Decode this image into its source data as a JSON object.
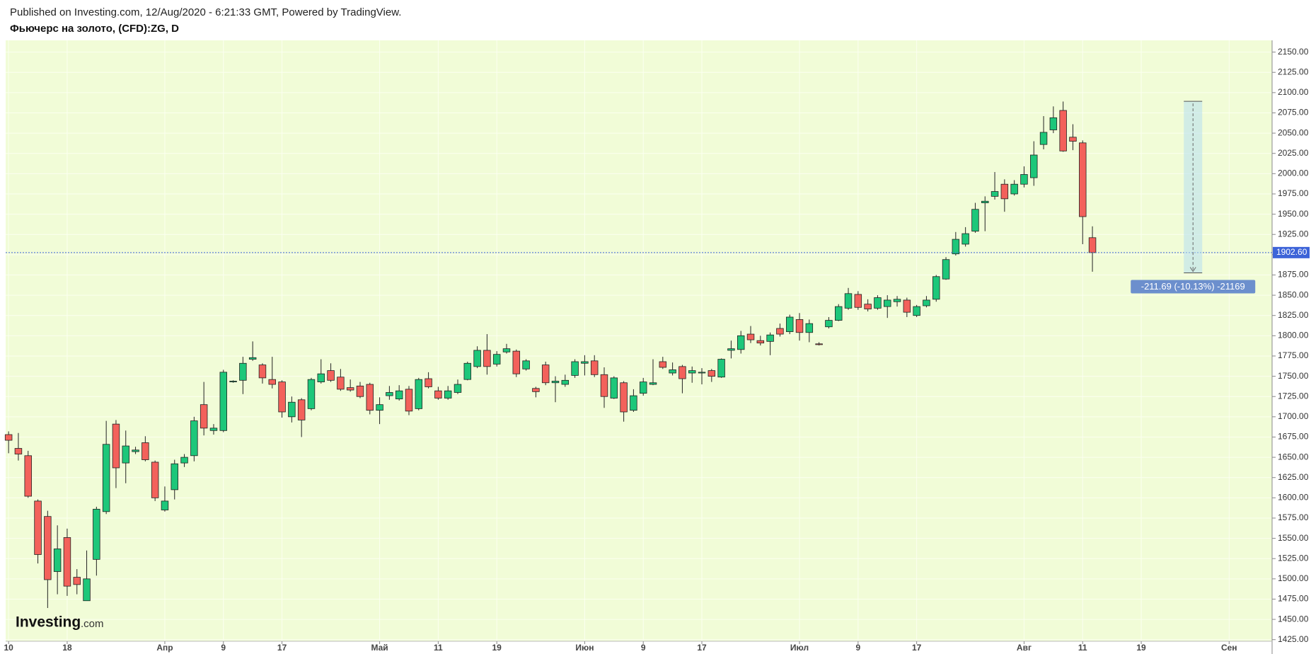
{
  "header": {
    "published": "Published on Investing.com, 12/Aug/2020 - 6:21:33 GMT, Powered by TradingView.",
    "title": "Фьючерс на золото, (CFD):ZG, D"
  },
  "logo": {
    "name": "Investing",
    "suffix": ".com"
  },
  "chart_data": {
    "type": "candlestick",
    "up_color": "#1dc77a",
    "down_color": "#f3615b",
    "wick_color": "#222222",
    "grid": true,
    "open": [
      1678,
      1661,
      1652,
      1596,
      1577,
      1509,
      1551,
      1502,
      1473,
      1524,
      1583,
      1691,
      1643,
      1657,
      1668,
      1644,
      1585,
      1610,
      1643,
      1652,
      1715,
      1683,
      1683,
      1743,
      1745,
      1771,
      1764,
      1746,
      1743,
      1700,
      1721,
      1710,
      1743,
      1757,
      1749,
      1736,
      1738,
      1740,
      1708,
      1726,
      1722,
      1734,
      1710,
      1747,
      1732,
      1723,
      1730,
      1746,
      1762,
      1782,
      1765,
      1780,
      1781,
      1759,
      1735,
      1764,
      1742,
      1740,
      1751,
      1766,
      1769,
      1752,
      1723,
      1742,
      1708,
      1729,
      1740,
      1768,
      1754,
      1762,
      1754,
      1754,
      1757,
      1749,
      1782,
      1783,
      1802,
      1794,
      1793,
      1809,
      1805,
      1820,
      1804,
      1790,
      1811,
      1819,
      1834,
      1851,
      1839,
      1834,
      1836,
      1842,
      1844,
      1825,
      1837,
      1845,
      1870,
      1901,
      1913,
      1929,
      1964,
      1972,
      1987,
      1975,
      1987,
      1995,
      2036,
      2054,
      2078,
      2045,
      2038,
      1921
    ],
    "high": [
      1682,
      1680,
      1658,
      1598,
      1584,
      1566,
      1562,
      1512,
      1535,
      1589,
      1695,
      1696,
      1683,
      1663,
      1676,
      1646,
      1614,
      1647,
      1654,
      1700,
      1743,
      1691,
      1758,
      1745,
      1774,
      1793,
      1766,
      1774,
      1745,
      1725,
      1723,
      1748,
      1771,
      1766,
      1759,
      1746,
      1743,
      1742,
      1724,
      1738,
      1739,
      1738,
      1748,
      1755,
      1737,
      1738,
      1746,
      1768,
      1787,
      1802,
      1781,
      1790,
      1783,
      1771,
      1737,
      1768,
      1750,
      1752,
      1771,
      1776,
      1776,
      1761,
      1750,
      1744,
      1734,
      1748,
      1771,
      1774,
      1767,
      1764,
      1762,
      1760,
      1759,
      1772,
      1794,
      1806,
      1812,
      1800,
      1804,
      1815,
      1826,
      1828,
      1820,
      1792,
      1823,
      1839,
      1859,
      1855,
      1845,
      1850,
      1850,
      1849,
      1847,
      1838,
      1849,
      1875,
      1897,
      1928,
      1934,
      1964,
      1972,
      2002,
      1993,
      1992,
      2009,
      2040,
      2071,
      2083,
      2089,
      2061,
      2041,
      1935
    ],
    "low": [
      1655,
      1646,
      1600,
      1519,
      1464,
      1481,
      1479,
      1481,
      1473,
      1504,
      1580,
      1612,
      1618,
      1654,
      1645,
      1596,
      1583,
      1598,
      1638,
      1645,
      1677,
      1678,
      1681,
      1742,
      1728,
      1769,
      1741,
      1735,
      1699,
      1693,
      1675,
      1708,
      1741,
      1743,
      1732,
      1731,
      1723,
      1703,
      1691,
      1721,
      1720,
      1702,
      1708,
      1735,
      1721,
      1721,
      1728,
      1745,
      1760,
      1752,
      1762,
      1778,
      1749,
      1757,
      1724,
      1739,
      1718,
      1737,
      1748,
      1751,
      1749,
      1711,
      1722,
      1694,
      1706,
      1726,
      1739,
      1759,
      1751,
      1729,
      1742,
      1740,
      1743,
      1748,
      1772,
      1778,
      1791,
      1788,
      1776,
      1799,
      1802,
      1794,
      1792,
      1788,
      1809,
      1818,
      1832,
      1832,
      1830,
      1832,
      1822,
      1836,
      1823,
      1823,
      1835,
      1842,
      1869,
      1899,
      1910,
      1927,
      1929,
      1968,
      1953,
      1973,
      1983,
      1985,
      2030,
      2050,
      2027,
      2029,
      1913,
      1879
    ],
    "close": [
      1671,
      1654,
      1602,
      1530,
      1499,
      1537,
      1491,
      1493,
      1500,
      1586,
      1666,
      1637,
      1664,
      1659,
      1647,
      1600,
      1596,
      1642,
      1650,
      1695,
      1686,
      1686,
      1755,
      1744,
      1766,
      1773,
      1748,
      1740,
      1706,
      1718,
      1696,
      1746,
      1753,
      1745,
      1734,
      1733,
      1725,
      1708,
      1715,
      1730,
      1732,
      1707,
      1746,
      1737,
      1723,
      1732,
      1740,
      1766,
      1782,
      1762,
      1777,
      1784,
      1753,
      1769,
      1731,
      1742,
      1744,
      1745,
      1768,
      1768,
      1752,
      1725,
      1748,
      1706,
      1726,
      1743,
      1742,
      1761,
      1758,
      1747,
      1757,
      1755,
      1750,
      1771,
      1784,
      1800,
      1795,
      1791,
      1801,
      1802,
      1823,
      1804,
      1815,
      1789,
      1819,
      1836,
      1852,
      1835,
      1833,
      1847,
      1844,
      1845,
      1829,
      1836,
      1844,
      1873,
      1894,
      1919,
      1926,
      1956,
      1966,
      1978,
      1969,
      1987,
      1999,
      2023,
      2051,
      2069,
      2028,
      2040,
      1947,
      1902.6
    ],
    "last_price": {
      "value": 1902.6,
      "label": "1902.60",
      "color": "#3d64d8"
    },
    "measure": {
      "from": 2089.3,
      "to": 1877.6,
      "label": "-211.69 (-10.13%) -21169",
      "color": "#6c8fcd"
    },
    "xlim": [
      -0.3,
      129.4
    ],
    "xticks": [
      {
        "value": 0,
        "label": "10"
      },
      {
        "value": 6,
        "label": "18"
      },
      {
        "value": 16,
        "label": "Апр"
      },
      {
        "value": 22,
        "label": "9"
      },
      {
        "value": 28,
        "label": "17"
      },
      {
        "value": 38,
        "label": "Май"
      },
      {
        "value": 44,
        "label": "11"
      },
      {
        "value": 50,
        "label": "19"
      },
      {
        "value": 59,
        "label": "Июн"
      },
      {
        "value": 65,
        "label": "9"
      },
      {
        "value": 71,
        "label": "17"
      },
      {
        "value": 81,
        "label": "Июл"
      },
      {
        "value": 87,
        "label": "9"
      },
      {
        "value": 93,
        "label": "17"
      },
      {
        "value": 104,
        "label": "Авг"
      },
      {
        "value": 110,
        "label": "11"
      },
      {
        "value": 116,
        "label": "19"
      },
      {
        "value": 125,
        "label": "Сен"
      }
    ],
    "ylim": [
      1423,
      2164.5
    ],
    "yticks": [
      {
        "value": 1425,
        "label": "1425.00"
      },
      {
        "value": 1450,
        "label": "1450.00"
      },
      {
        "value": 1475,
        "label": "1475.00"
      },
      {
        "value": 1500,
        "label": "1500.00"
      },
      {
        "value": 1525,
        "label": "1525.00"
      },
      {
        "value": 1550,
        "label": "1550.00"
      },
      {
        "value": 1575,
        "label": "1575.00"
      },
      {
        "value": 1600,
        "label": "1600.00"
      },
      {
        "value": 1625,
        "label": "1625.00"
      },
      {
        "value": 1650,
        "label": "1650.00"
      },
      {
        "value": 1675,
        "label": "1675.00"
      },
      {
        "value": 1700,
        "label": "1700.00"
      },
      {
        "value": 1725,
        "label": "1725.00"
      },
      {
        "value": 1750,
        "label": "1750.00"
      },
      {
        "value": 1775,
        "label": "1775.00"
      },
      {
        "value": 1800,
        "label": "1800.00"
      },
      {
        "value": 1825,
        "label": "1825.00"
      },
      {
        "value": 1850,
        "label": "1850.00"
      },
      {
        "value": 1875,
        "label": "1875.00"
      },
      {
        "value": 1900,
        "label": "1900.00"
      },
      {
        "value": 1925,
        "label": "1925.00"
      },
      {
        "value": 1950,
        "label": "1950.00"
      },
      {
        "value": 1975,
        "label": "1975.00"
      },
      {
        "value": 2000,
        "label": "2000.00"
      },
      {
        "value": 2025,
        "label": "2025.00"
      },
      {
        "value": 2050,
        "label": "2050.00"
      },
      {
        "value": 2075,
        "label": "2075.00"
      },
      {
        "value": 2100,
        "label": "2100.00"
      },
      {
        "value": 2125,
        "label": "2125.00"
      },
      {
        "value": 2150,
        "label": "2150.00"
      }
    ]
  }
}
